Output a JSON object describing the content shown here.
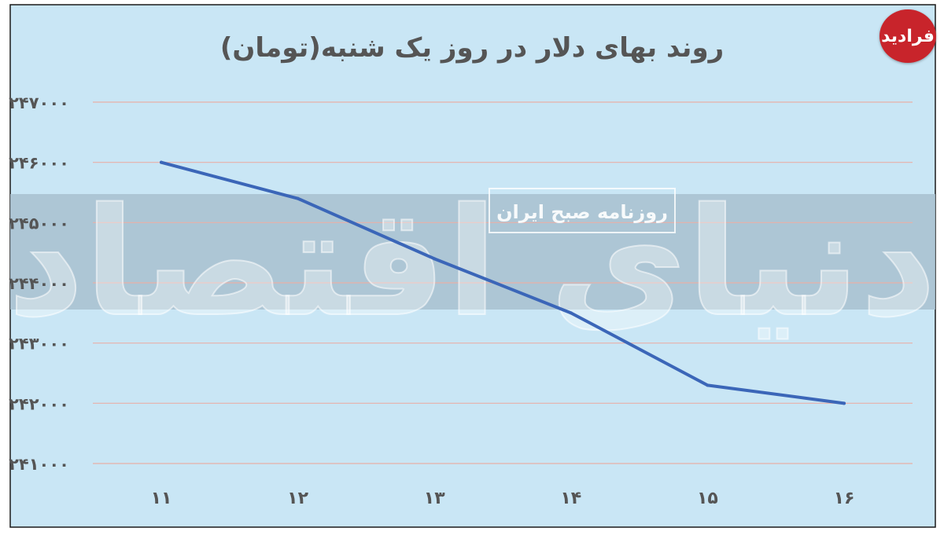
{
  "brand": {
    "logo_text": "فرادید",
    "watermark_main": "دنیای اقتصاد",
    "watermark_sub": "روزنامه صبح ایران"
  },
  "colors": {
    "background": "#c9e6f5",
    "line": "#3b66b8",
    "grid": "#e8b0a8",
    "band": "#a8c0cf",
    "text": "#555555",
    "logo": "#c8242b"
  },
  "chart_data": {
    "type": "line",
    "title": "روند بهای دلار در روز یک شنبه(تومان)",
    "xlabel": "",
    "ylabel": "",
    "x": [
      "۱۱",
      "۱۲",
      "۱۳",
      "۱۴",
      "۱۵",
      "۱۶"
    ],
    "y": [
      246000,
      245400,
      244400,
      243500,
      242300,
      242000
    ],
    "y_ticks": [
      241000,
      242000,
      243000,
      244000,
      245000,
      246000,
      247000
    ],
    "y_tick_labels": [
      "۲۴۱۰۰۰",
      "۲۴۲۰۰۰",
      "۲۴۳۰۰۰",
      "۲۴۴۰۰۰",
      "۲۴۵۰۰۰",
      "۲۴۶۰۰۰",
      "۲۴۷۰۰۰"
    ],
    "ylim": [
      241000,
      247000
    ],
    "grid": true,
    "legend": "none"
  }
}
